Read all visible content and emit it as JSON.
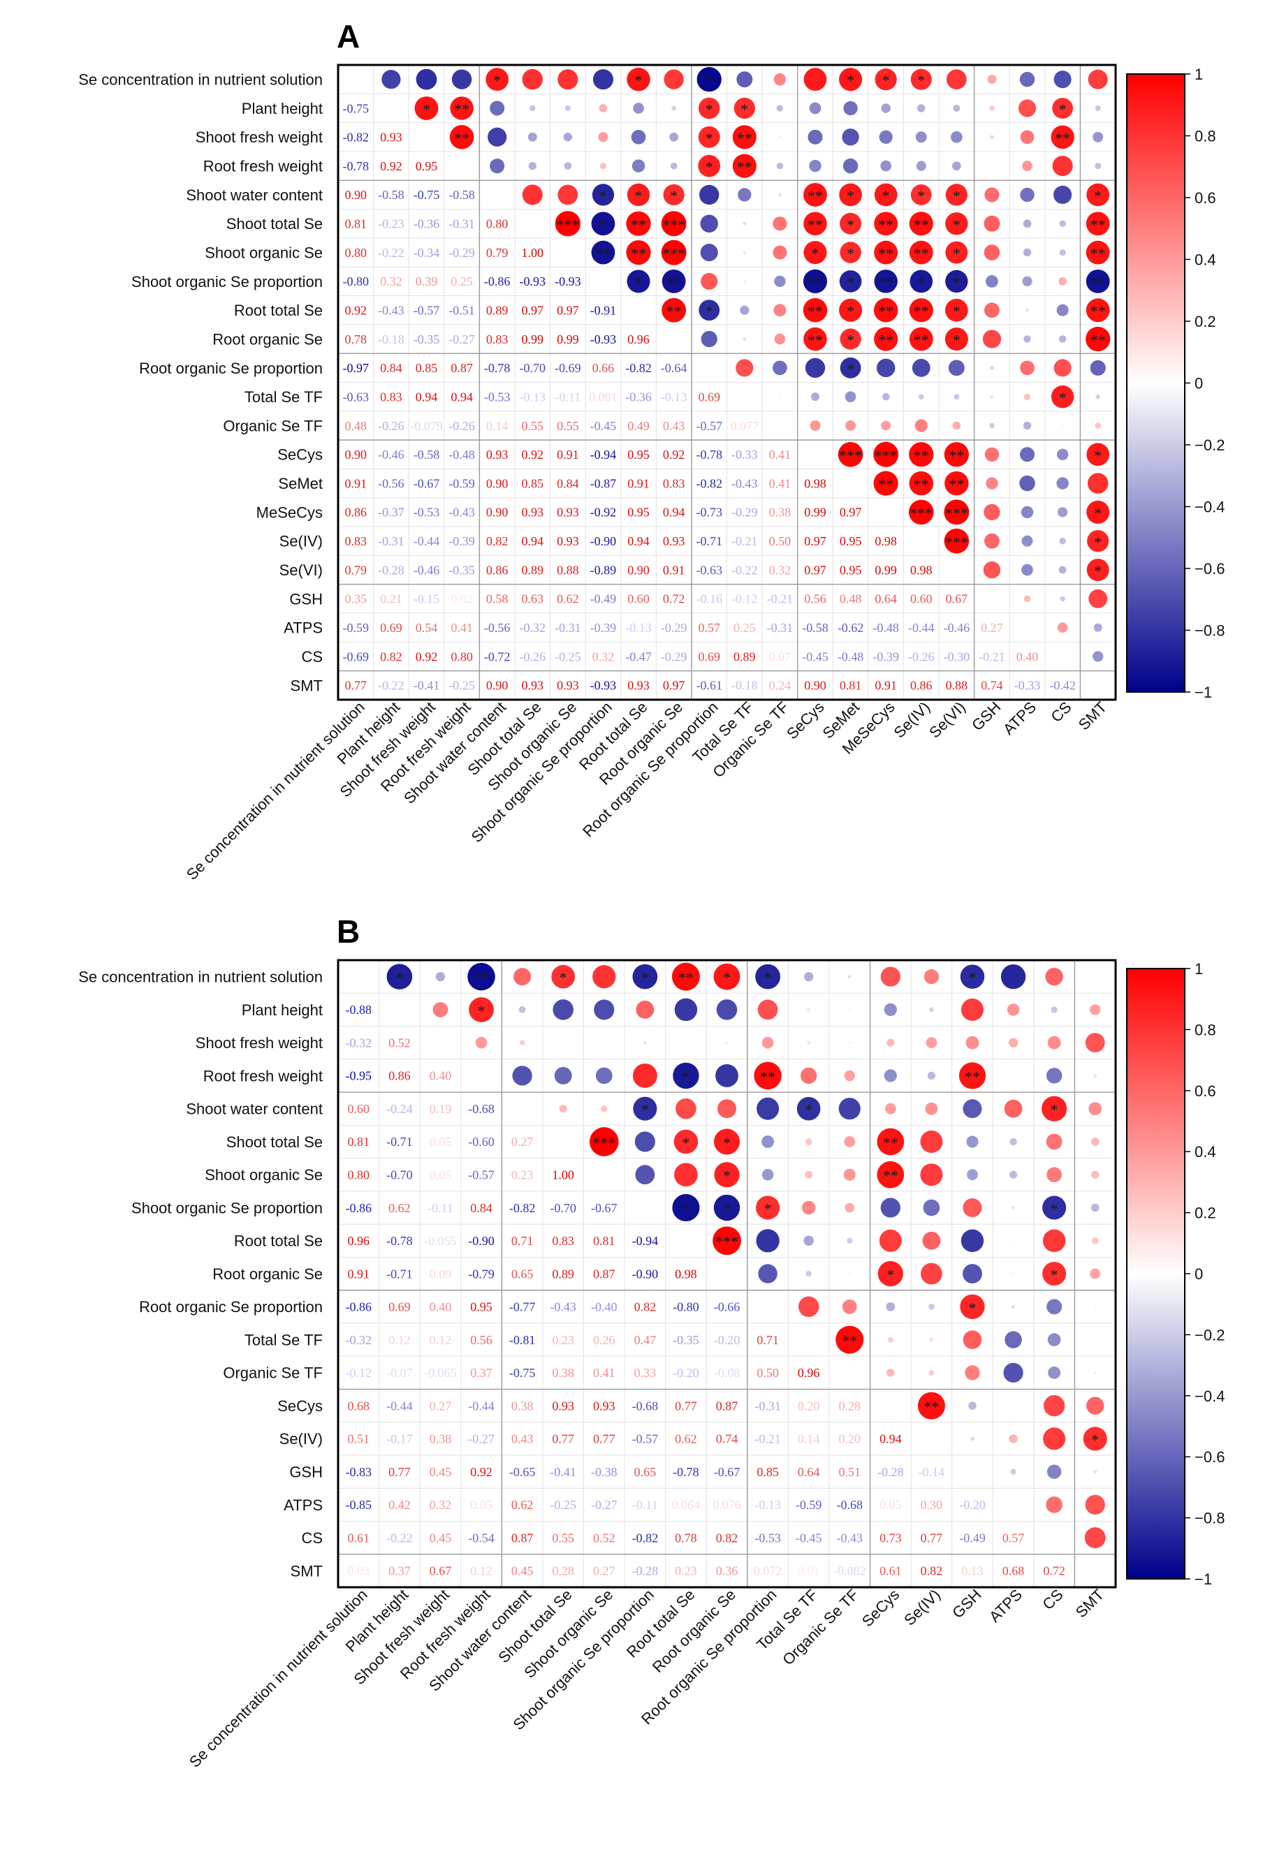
{
  "chart_data": [
    {
      "panel": "A",
      "type": "heatmap",
      "title": "A",
      "variables": [
        "Se concentration in nutrient solution",
        "Plant height",
        "Shoot fresh weight",
        "Root fresh weight",
        "Shoot water content",
        "Shoot total Se",
        "Shoot organic Se",
        "Shoot organic Se proportion",
        "Root total Se",
        "Root organic Se",
        "Root organic Se proportion",
        "Total Se TF",
        "Organic Se TF",
        "SeCys",
        "SeMet",
        "MeSeCys",
        "Se(IV)",
        "Se(VI)",
        "GSH",
        "ATPS",
        "CS",
        "SMT"
      ],
      "lower_values": [
        [],
        [
          -0.75
        ],
        [
          -0.82,
          0.93
        ],
        [
          -0.78,
          0.92,
          0.95
        ],
        [
          0.9,
          -0.58,
          -0.75,
          -0.58
        ],
        [
          0.81,
          -0.23,
          -0.36,
          -0.31,
          0.8
        ],
        [
          0.8,
          -0.22,
          -0.34,
          -0.29,
          0.79,
          1.0
        ],
        [
          -0.8,
          0.32,
          0.39,
          0.25,
          -0.86,
          -0.93,
          -0.93
        ],
        [
          0.92,
          -0.43,
          -0.57,
          -0.51,
          0.89,
          0.97,
          0.97,
          -0.91
        ],
        [
          0.78,
          -0.18,
          -0.35,
          -0.27,
          0.83,
          0.99,
          0.99,
          -0.93,
          0.96
        ],
        [
          -0.97,
          0.84,
          0.85,
          0.87,
          -0.78,
          -0.7,
          -0.69,
          0.66,
          -0.82,
          -0.64
        ],
        [
          -0.63,
          0.83,
          0.94,
          0.94,
          -0.53,
          -0.13,
          -0.11,
          0.081,
          -0.36,
          -0.13,
          0.69
        ],
        [
          0.48,
          -0.26,
          -0.079,
          -0.26,
          0.14,
          0.55,
          0.55,
          -0.45,
          0.49,
          0.43,
          -0.57,
          0.077
        ],
        [
          0.9,
          -0.46,
          -0.58,
          -0.48,
          0.93,
          0.92,
          0.91,
          -0.94,
          0.95,
          0.92,
          -0.78,
          -0.33,
          0.41
        ],
        [
          0.91,
          -0.56,
          -0.67,
          -0.59,
          0.9,
          0.85,
          0.84,
          -0.87,
          0.91,
          0.83,
          -0.82,
          -0.43,
          0.41,
          0.98
        ],
        [
          0.86,
          -0.37,
          -0.53,
          -0.43,
          0.9,
          0.93,
          0.93,
          -0.92,
          0.95,
          0.94,
          -0.73,
          -0.29,
          0.38,
          0.99,
          0.97
        ],
        [
          0.83,
          -0.31,
          -0.44,
          -0.39,
          0.82,
          0.94,
          0.93,
          -0.9,
          0.94,
          0.93,
          -0.71,
          -0.21,
          0.5,
          0.97,
          0.95,
          0.98
        ],
        [
          0.79,
          -0.28,
          -0.46,
          -0.35,
          0.86,
          0.89,
          0.88,
          -0.89,
          0.9,
          0.91,
          -0.63,
          -0.22,
          0.32,
          0.97,
          0.95,
          0.99,
          0.98
        ],
        [
          0.35,
          0.21,
          -0.15,
          0.02,
          0.58,
          0.63,
          0.62,
          -0.49,
          0.6,
          0.72,
          -0.16,
          -0.12,
          -0.21,
          0.56,
          0.48,
          0.64,
          0.6,
          0.67
        ],
        [
          -0.59,
          0.69,
          0.54,
          0.41,
          -0.56,
          -0.32,
          -0.31,
          -0.39,
          -0.13,
          -0.29,
          0.57,
          0.25,
          -0.31,
          -0.58,
          -0.62,
          -0.48,
          -0.44,
          -0.46,
          0.27
        ],
        [
          -0.69,
          0.82,
          0.92,
          0.8,
          -0.72,
          -0.26,
          -0.25,
          0.32,
          -0.47,
          -0.29,
          0.69,
          0.89,
          0.07,
          -0.45,
          -0.48,
          -0.39,
          -0.26,
          -0.3,
          -0.21,
          0.4
        ],
        [
          0.77,
          -0.22,
          -0.41,
          -0.25,
          0.9,
          0.93,
          0.93,
          -0.93,
          0.93,
          0.97,
          -0.61,
          -0.18,
          0.24,
          0.9,
          0.81,
          0.91,
          0.86,
          0.88,
          0.74,
          -0.33,
          -0.42
        ]
      ],
      "significance": [
        [
          1,
          2,
          "*"
        ],
        [
          0,
          4,
          "*"
        ],
        [
          0,
          8,
          "*"
        ],
        [
          0,
          14,
          "*"
        ],
        [
          0,
          15,
          "*"
        ],
        [
          0,
          16,
          "*"
        ],
        [
          0,
          10,
          "*"
        ],
        [
          1,
          3,
          "**"
        ],
        [
          1,
          10,
          "*"
        ],
        [
          1,
          11,
          "*"
        ],
        [
          1,
          20,
          "*"
        ],
        [
          2,
          3,
          "**"
        ],
        [
          2,
          10,
          "*"
        ],
        [
          2,
          11,
          "**"
        ],
        [
          2,
          20,
          "**"
        ],
        [
          3,
          10,
          "*"
        ],
        [
          3,
          11,
          "**"
        ],
        [
          4,
          7,
          "*"
        ],
        [
          4,
          8,
          "*"
        ],
        [
          4,
          9,
          "*"
        ],
        [
          4,
          13,
          "**"
        ],
        [
          4,
          14,
          "*"
        ],
        [
          4,
          15,
          "*"
        ],
        [
          4,
          16,
          "*"
        ],
        [
          4,
          17,
          "*"
        ],
        [
          4,
          21,
          "*"
        ],
        [
          5,
          6,
          "***"
        ],
        [
          5,
          7,
          "*"
        ],
        [
          5,
          8,
          "**"
        ],
        [
          5,
          9,
          "***"
        ],
        [
          5,
          13,
          "**"
        ],
        [
          5,
          14,
          "*"
        ],
        [
          5,
          15,
          "**"
        ],
        [
          5,
          16,
          "**"
        ],
        [
          5,
          17,
          "*"
        ],
        [
          5,
          21,
          "**"
        ],
        [
          6,
          7,
          "**"
        ],
        [
          6,
          8,
          "**"
        ],
        [
          6,
          9,
          "***"
        ],
        [
          6,
          13,
          "*"
        ],
        [
          6,
          14,
          "*"
        ],
        [
          6,
          15,
          "**"
        ],
        [
          6,
          16,
          "**"
        ],
        [
          6,
          17,
          "*"
        ],
        [
          6,
          21,
          "**"
        ],
        [
          7,
          8,
          "*"
        ],
        [
          7,
          9,
          "**"
        ],
        [
          7,
          13,
          "**"
        ],
        [
          7,
          14,
          "*"
        ],
        [
          7,
          15,
          "**"
        ],
        [
          7,
          16,
          "*"
        ],
        [
          7,
          17,
          "*"
        ],
        [
          7,
          21,
          "**"
        ],
        [
          8,
          9,
          "**"
        ],
        [
          8,
          10,
          "*"
        ],
        [
          8,
          13,
          "**"
        ],
        [
          8,
          14,
          "*"
        ],
        [
          8,
          15,
          "**"
        ],
        [
          8,
          16,
          "**"
        ],
        [
          8,
          17,
          "*"
        ],
        [
          8,
          21,
          "**"
        ],
        [
          9,
          13,
          "**"
        ],
        [
          9,
          14,
          "*"
        ],
        [
          9,
          15,
          "**"
        ],
        [
          9,
          16,
          "**"
        ],
        [
          9,
          17,
          "*"
        ],
        [
          9,
          21,
          "**"
        ],
        [
          10,
          14,
          "*"
        ],
        [
          11,
          20,
          "*"
        ],
        [
          13,
          14,
          "***"
        ],
        [
          13,
          15,
          "***"
        ],
        [
          13,
          16,
          "**"
        ],
        [
          13,
          17,
          "**"
        ],
        [
          13,
          21,
          "*"
        ],
        [
          14,
          15,
          "**"
        ],
        [
          14,
          16,
          "**"
        ],
        [
          14,
          17,
          "**"
        ],
        [
          15,
          16,
          "***"
        ],
        [
          15,
          17,
          "***"
        ],
        [
          15,
          21,
          "*"
        ],
        [
          16,
          17,
          "***"
        ],
        [
          16,
          21,
          "*"
        ],
        [
          17,
          21,
          "*"
        ]
      ],
      "colorbar": {
        "range": [
          -1,
          1
        ],
        "ticks": [
          "1",
          "0.8",
          "0.6",
          "0.4",
          "0.2",
          "0",
          "−0.2",
          "−0.4",
          "−0.6",
          "−0.8",
          "−1"
        ]
      }
    },
    {
      "panel": "B",
      "type": "heatmap",
      "title": "B",
      "variables": [
        "Se concentration in nutrient solution",
        "Plant height",
        "Shoot fresh weight",
        "Root fresh weight",
        "Shoot water content",
        "Shoot total Se",
        "Shoot organic Se",
        "Shoot organic Se proportion",
        "Root total Se",
        "Root organic Se",
        "Root organic Se proportion",
        "Total Se TF",
        "Organic Se TF",
        "SeCys",
        "Se(IV)",
        "GSH",
        "ATPS",
        "CS",
        "SMT"
      ],
      "lower_values": [
        [],
        [
          -0.88
        ],
        [
          -0.32,
          0.52
        ],
        [
          -0.95,
          0.86,
          0.4
        ],
        [
          0.6,
          -0.24,
          0.19,
          -0.68
        ],
        [
          0.81,
          -0.71,
          0.05,
          -0.6,
          0.27
        ],
        [
          0.8,
          -0.7,
          0.05,
          -0.57,
          0.23,
          1.0
        ],
        [
          -0.86,
          0.62,
          -0.11,
          0.84,
          -0.82,
          -0.7,
          -0.67
        ],
        [
          0.96,
          -0.78,
          -0.055,
          -0.9,
          0.71,
          0.83,
          0.81,
          -0.94
        ],
        [
          0.91,
          -0.71,
          0.09,
          -0.79,
          0.65,
          0.89,
          0.87,
          -0.9,
          0.98
        ],
        [
          -0.86,
          0.69,
          0.4,
          0.95,
          -0.77,
          -0.43,
          -0.4,
          0.82,
          -0.8,
          -0.66
        ],
        [
          -0.32,
          0.12,
          0.12,
          0.56,
          -0.81,
          0.23,
          0.26,
          0.47,
          -0.35,
          -0.2,
          0.71
        ],
        [
          -0.12,
          -0.07,
          -0.065,
          0.37,
          -0.75,
          0.38,
          0.41,
          0.33,
          -0.2,
          -0.08,
          0.5,
          0.96
        ],
        [
          0.68,
          -0.44,
          0.27,
          -0.44,
          0.38,
          0.93,
          0.93,
          -0.68,
          0.77,
          0.87,
          -0.31,
          0.2,
          0.28
        ],
        [
          0.51,
          -0.17,
          0.38,
          -0.27,
          0.43,
          0.77,
          0.77,
          -0.57,
          0.62,
          0.74,
          -0.21,
          0.14,
          0.2,
          0.94
        ],
        [
          -0.83,
          0.77,
          0.45,
          0.92,
          -0.65,
          -0.41,
          -0.38,
          0.65,
          -0.78,
          -0.67,
          0.85,
          0.64,
          0.51,
          -0.28,
          -0.14
        ],
        [
          -0.85,
          0.42,
          0.32,
          0.05,
          0.62,
          -0.25,
          -0.27,
          -0.11,
          0.064,
          0.076,
          -0.13,
          -0.59,
          -0.68,
          0.05,
          0.3,
          -0.2
        ],
        [
          0.61,
          -0.22,
          0.45,
          -0.54,
          0.87,
          0.55,
          0.52,
          -0.82,
          0.78,
          0.82,
          -0.53,
          -0.45,
          -0.43,
          0.73,
          0.77,
          -0.49,
          0.57
        ],
        [
          0.03,
          0.37,
          0.67,
          0.12,
          0.45,
          0.28,
          0.27,
          -0.28,
          0.23,
          0.36,
          0.072,
          0.01,
          -0.082,
          0.61,
          0.82,
          0.13,
          0.68,
          0.72
        ]
      ],
      "significance": [
        [
          0,
          1,
          "*"
        ],
        [
          0,
          3,
          "**"
        ],
        [
          0,
          5,
          "*"
        ],
        [
          0,
          7,
          "*"
        ],
        [
          0,
          8,
          "**"
        ],
        [
          0,
          9,
          "*"
        ],
        [
          0,
          10,
          "*"
        ],
        [
          0,
          15,
          "*"
        ],
        [
          1,
          3,
          "*"
        ],
        [
          3,
          8,
          "*"
        ],
        [
          3,
          10,
          "**"
        ],
        [
          3,
          15,
          "**"
        ],
        [
          4,
          7,
          "*"
        ],
        [
          4,
          11,
          "*"
        ],
        [
          4,
          17,
          "*"
        ],
        [
          5,
          6,
          "***"
        ],
        [
          5,
          8,
          "*"
        ],
        [
          5,
          9,
          "*"
        ],
        [
          5,
          13,
          "**"
        ],
        [
          6,
          9,
          "*"
        ],
        [
          6,
          13,
          "**"
        ],
        [
          7,
          8,
          "*"
        ],
        [
          7,
          9,
          "*"
        ],
        [
          7,
          10,
          "*"
        ],
        [
          7,
          17,
          "*"
        ],
        [
          8,
          9,
          "***"
        ],
        [
          9,
          13,
          "*"
        ],
        [
          9,
          17,
          "*"
        ],
        [
          10,
          15,
          "*"
        ],
        [
          11,
          12,
          "**"
        ],
        [
          13,
          14,
          "**"
        ],
        [
          14,
          18,
          "*"
        ]
      ],
      "colorbar": {
        "range": [
          -1,
          1
        ],
        "ticks": [
          "1",
          "0.8",
          "0.6",
          "0.4",
          "0.2",
          "0",
          "−0.2",
          "−0.4",
          "−0.6",
          "−0.8",
          "−1"
        ]
      }
    }
  ]
}
